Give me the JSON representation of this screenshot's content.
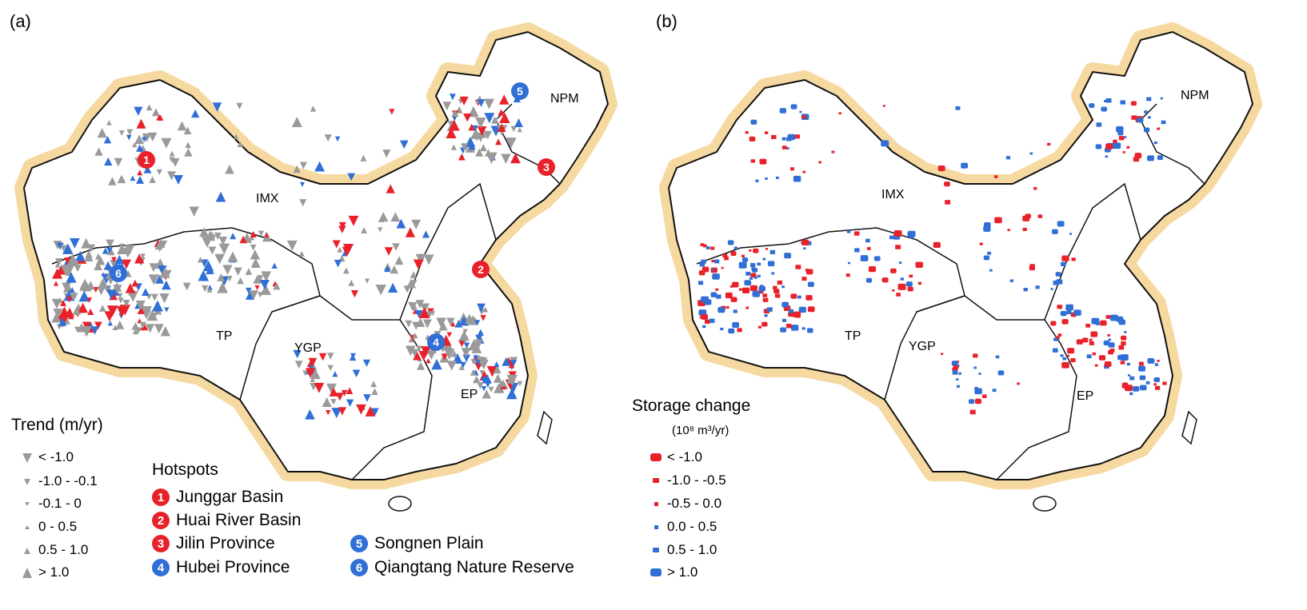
{
  "panels": {
    "a": {
      "label": "(a)"
    },
    "b": {
      "label": "(b)"
    }
  },
  "regions": [
    "IMX",
    "NPM",
    "TP",
    "YGP",
    "EP"
  ],
  "legend_trend": {
    "title": "Trend (m/yr)",
    "items": [
      "< -1.0",
      "-1.0 - -0.1",
      "-0.1 - 0",
      "0 - 0.5",
      "0.5 - 1.0",
      "> 1.0"
    ]
  },
  "hotspots": {
    "title": "Hotspots",
    "items": [
      {
        "num": "1",
        "name": "Junggar Basin",
        "color": "#e8212a"
      },
      {
        "num": "2",
        "name": "Huai River Basin",
        "color": "#e8212a"
      },
      {
        "num": "3",
        "name": "Jilin Province",
        "color": "#e8212a"
      },
      {
        "num": "4",
        "name": "Hubei Province",
        "color": "#2f6fd6"
      },
      {
        "num": "5",
        "name": "Songnen Plain",
        "color": "#2f6fd6"
      },
      {
        "num": "6",
        "name": "Qiangtang Nature Reserve",
        "color": "#2f6fd6"
      }
    ]
  },
  "legend_storage": {
    "title": "Storage change",
    "unit": "(10⁸ m³/yr)",
    "items": [
      "< -1.0",
      "-1.0 - -0.5",
      "-0.5 - 0.0",
      "0.0 - 0.5",
      "0.5 - 1.0",
      "> 1.0"
    ]
  },
  "colors": {
    "decline": "#e8212a",
    "rise": "#2f6fd6",
    "neutral": "#9a9a9a",
    "border_glow": "#f3d08c"
  }
}
